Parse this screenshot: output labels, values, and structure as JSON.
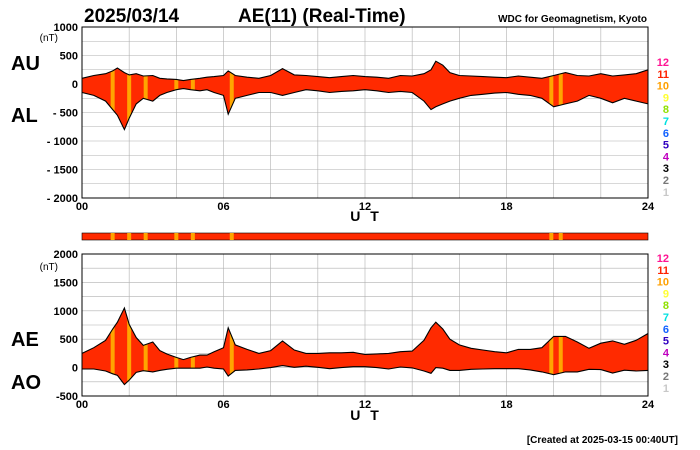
{
  "header": {
    "date": "2025/03/14",
    "title": "AE(11) (Real-Time)",
    "source": "WDC for Geomagnetism, Kyoto"
  },
  "footer": {
    "created": "[Created at 2025-03-15 00:40UT]"
  },
  "legend": {
    "items": [
      {
        "label": "12",
        "color": "#ff1493"
      },
      {
        "label": "11",
        "color": "#ff2200"
      },
      {
        "label": "10",
        "color": "#ffa000"
      },
      {
        "label": "9",
        "color": "#ffff30"
      },
      {
        "label": "8",
        "color": "#90e000"
      },
      {
        "label": "7",
        "color": "#00e0e0"
      },
      {
        "label": "6",
        "color": "#1060ff"
      },
      {
        "label": "5",
        "color": "#3000c0"
      },
      {
        "label": "4",
        "color": "#c000c0"
      },
      {
        "label": "3",
        "color": "#000000"
      },
      {
        "label": "2",
        "color": "#777777"
      },
      {
        "label": "1",
        "color": "#c8c8c8"
      }
    ]
  },
  "colors": {
    "fill": "#ff2a00",
    "stripe": "#ffa500",
    "outline": "#000000",
    "strip": "#ff2a00"
  },
  "chart_data": [
    {
      "type": "area",
      "series_labels": [
        "AU",
        "AL"
      ],
      "unit_label": "(nT)",
      "xlabel": "U T",
      "xlim": [
        0,
        24
      ],
      "ylim": [
        -2000,
        1000
      ],
      "yticks": [
        1000,
        500,
        0,
        -500,
        -1000,
        -1500,
        -2000
      ],
      "ytick_labels": [
        "1000",
        "500",
        "0",
        "- 500",
        "- 1000",
        "- 1500",
        "- 2000"
      ],
      "xticks": [
        0,
        6,
        12,
        18,
        24
      ],
      "xtick_labels": [
        "00",
        "06",
        "12",
        "18",
        "24"
      ],
      "grid": true,
      "au": {
        "x": [
          0,
          0.5,
          1,
          1.3,
          1.5,
          1.8,
          2,
          2.3,
          2.6,
          3,
          3.3,
          3.6,
          4,
          4.3,
          4.6,
          5,
          5.3,
          5.6,
          6,
          6.2,
          6.5,
          7,
          7.5,
          8,
          8.5,
          9,
          9.5,
          10,
          10.5,
          11,
          11.5,
          12,
          12.5,
          13,
          13.5,
          14,
          14.5,
          14.8,
          15,
          15.3,
          15.6,
          16,
          16.5,
          17,
          17.5,
          18,
          18.5,
          19,
          19.5,
          20,
          20.5,
          21,
          21.5,
          22,
          22.5,
          23,
          23.5,
          24
        ],
        "y": [
          100,
          150,
          180,
          230,
          280,
          200,
          160,
          180,
          140,
          150,
          100,
          90,
          80,
          60,
          80,
          100,
          120,
          130,
          150,
          230,
          150,
          120,
          100,
          150,
          270,
          160,
          150,
          130,
          110,
          130,
          150,
          130,
          120,
          100,
          150,
          140,
          180,
          250,
          400,
          330,
          200,
          150,
          140,
          130,
          120,
          110,
          140,
          120,
          100,
          150,
          200,
          150,
          140,
          180,
          140,
          160,
          180,
          250
        ]
      },
      "al": {
        "x": [
          0,
          0.5,
          1,
          1.3,
          1.5,
          1.8,
          2,
          2.3,
          2.6,
          3,
          3.3,
          3.6,
          4,
          4.3,
          4.6,
          5,
          5.3,
          5.6,
          6,
          6.2,
          6.5,
          7,
          7.5,
          8,
          8.5,
          9,
          9.5,
          10,
          10.5,
          11,
          11.5,
          12,
          12.5,
          13,
          13.5,
          14,
          14.5,
          14.8,
          15,
          15.3,
          15.6,
          16,
          16.5,
          17,
          17.5,
          18,
          18.5,
          19,
          19.5,
          20,
          20.5,
          21,
          21.5,
          22,
          22.5,
          23,
          23.5,
          24
        ],
        "y": [
          -150,
          -200,
          -300,
          -450,
          -550,
          -800,
          -600,
          -350,
          -250,
          -300,
          -200,
          -150,
          -100,
          -80,
          -100,
          -120,
          -100,
          -150,
          -200,
          -530,
          -250,
          -200,
          -150,
          -150,
          -200,
          -150,
          -100,
          -120,
          -150,
          -130,
          -120,
          -100,
          -120,
          -150,
          -130,
          -150,
          -300,
          -450,
          -400,
          -350,
          -300,
          -250,
          -200,
          -180,
          -160,
          -150,
          -180,
          -200,
          -250,
          -400,
          -350,
          -300,
          -200,
          -250,
          -330,
          -250,
          -300,
          -350
        ]
      },
      "stripes": [
        1.3,
        2.0,
        2.7,
        4.0,
        4.7,
        6.35,
        19.9,
        20.3
      ]
    },
    {
      "type": "area",
      "series_labels": [
        "AE",
        "AO"
      ],
      "unit_label": "(nT)",
      "xlabel": "U T",
      "xlim": [
        0,
        24
      ],
      "ylim": [
        -500,
        2000
      ],
      "yticks": [
        2000,
        1500,
        1000,
        500,
        0,
        -500
      ],
      "ytick_labels": [
        "2000",
        "1500",
        "1000",
        "500",
        "0",
        "-500"
      ],
      "xticks": [
        0,
        6,
        12,
        18,
        24
      ],
      "xtick_labels": [
        "00",
        "06",
        "12",
        "18",
        "24"
      ],
      "grid": true,
      "ae": {
        "x": [
          0,
          0.5,
          1,
          1.3,
          1.5,
          1.8,
          2,
          2.3,
          2.6,
          3,
          3.3,
          3.6,
          4,
          4.3,
          4.6,
          5,
          5.3,
          5.6,
          6,
          6.2,
          6.5,
          7,
          7.5,
          8,
          8.5,
          9,
          9.5,
          10,
          10.5,
          11,
          11.5,
          12,
          12.5,
          13,
          13.5,
          14,
          14.5,
          14.8,
          15,
          15.3,
          15.6,
          16,
          16.5,
          17,
          17.5,
          18,
          18.5,
          19,
          19.5,
          20,
          20.5,
          21,
          21.5,
          22,
          22.5,
          23,
          23.5,
          24
        ],
        "y": [
          250,
          350,
          480,
          680,
          800,
          1050,
          760,
          530,
          390,
          450,
          300,
          240,
          180,
          140,
          180,
          220,
          220,
          280,
          350,
          700,
          400,
          320,
          250,
          300,
          470,
          310,
          250,
          250,
          260,
          260,
          270,
          230,
          240,
          250,
          280,
          290,
          480,
          700,
          800,
          680,
          500,
          400,
          340,
          310,
          280,
          260,
          320,
          320,
          350,
          550,
          550,
          450,
          340,
          430,
          470,
          410,
          480,
          600
        ]
      },
      "ao": {
        "x": [
          0,
          0.5,
          1,
          1.3,
          1.5,
          1.8,
          2,
          2.3,
          2.6,
          3,
          3.3,
          3.6,
          4,
          4.3,
          4.6,
          5,
          5.3,
          5.6,
          6,
          6.2,
          6.5,
          7,
          7.5,
          8,
          8.5,
          9,
          9.5,
          10,
          10.5,
          11,
          11.5,
          12,
          12.5,
          13,
          13.5,
          14,
          14.5,
          14.8,
          15,
          15.3,
          15.6,
          16,
          16.5,
          17,
          17.5,
          18,
          18.5,
          19,
          19.5,
          20,
          20.5,
          21,
          21.5,
          22,
          22.5,
          23,
          23.5,
          24
        ],
        "y": [
          -25,
          -25,
          -60,
          -110,
          -135,
          -300,
          -220,
          -85,
          -55,
          -75,
          -50,
          -30,
          -10,
          -10,
          -10,
          -10,
          10,
          -10,
          -25,
          -150,
          -50,
          -40,
          -25,
          0,
          35,
          5,
          25,
          5,
          -20,
          0,
          15,
          15,
          0,
          -25,
          10,
          -5,
          -60,
          -100,
          0,
          -10,
          -50,
          -50,
          -30,
          -25,
          -20,
          -20,
          -20,
          -40,
          -75,
          -125,
          -75,
          -75,
          -30,
          -35,
          -95,
          -45,
          -60,
          -50
        ]
      },
      "stripes": [
        1.3,
        2.0,
        2.7,
        4.0,
        4.7,
        6.35,
        19.9,
        20.3
      ]
    }
  ]
}
